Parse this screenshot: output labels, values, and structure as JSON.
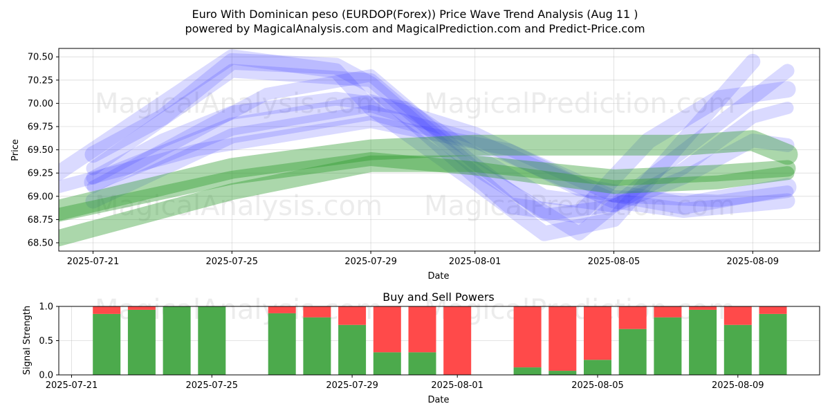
{
  "title": "Euro With Dominican peso (EURDOP(Forex)) Price Wave Trend Analysis (Aug 11 )",
  "subtitle": "powered by MagicalAnalysis.com and MagicalPrediction.com and Predict-Price.com",
  "watermarks": [
    "MagicalAnalysis.com",
    "MagicalPrediction.com"
  ],
  "chart_data": [
    {
      "type": "line",
      "title": "",
      "xlabel": "Date",
      "ylabel": "Price",
      "xlim": [
        "2025-07-20",
        "2025-08-11"
      ],
      "ylim": [
        68.41,
        70.6
      ],
      "grid": true,
      "x_tick_labels": [
        "2025-07-21",
        "2025-07-25",
        "2025-07-29",
        "2025-08-01",
        "2025-08-05",
        "2025-08-09"
      ],
      "y_tick_labels": [
        "68.50",
        "68.75",
        "69.00",
        "69.25",
        "69.50",
        "69.75",
        "70.00",
        "70.25",
        "70.50"
      ],
      "colors": {
        "blue_wave": "#3333ff",
        "green_wave": "#2e9c2e"
      },
      "series": [
        {
          "name": "blue-wave-1",
          "color": "blue",
          "opacity": 0.18,
          "x": [
            "2025-07-20",
            "2025-07-25",
            "2025-07-28",
            "2025-07-29",
            "2025-08-01",
            "2025-08-03",
            "2025-08-05",
            "2025-08-09"
          ],
          "values": [
            69.25,
            70.5,
            70.35,
            69.95,
            69.15,
            68.6,
            68.75,
            70.45
          ]
        },
        {
          "name": "blue-wave-2",
          "color": "blue",
          "opacity": 0.18,
          "x": [
            "2025-07-21",
            "2025-07-25",
            "2025-07-29",
            "2025-08-01",
            "2025-08-04",
            "2025-08-06",
            "2025-08-10"
          ],
          "values": [
            69.3,
            70.35,
            70.25,
            69.3,
            68.6,
            69.2,
            70.35
          ]
        },
        {
          "name": "blue-wave-3",
          "color": "blue",
          "opacity": 0.18,
          "x": [
            "2025-07-21",
            "2025-07-23",
            "2025-07-25",
            "2025-07-28",
            "2025-07-29",
            "2025-07-31",
            "2025-08-02",
            "2025-08-04",
            "2025-08-06",
            "2025-08-08",
            "2025-08-10"
          ],
          "values": [
            69.45,
            69.85,
            70.45,
            70.4,
            70.2,
            69.55,
            68.9,
            68.8,
            69.6,
            70.05,
            70.15
          ]
        },
        {
          "name": "blue-wave-4",
          "color": "blue",
          "opacity": 0.18,
          "x": [
            "2025-07-21",
            "2025-07-24",
            "2025-07-26",
            "2025-07-29",
            "2025-08-01",
            "2025-08-03",
            "2025-08-05",
            "2025-08-07",
            "2025-08-09",
            "2025-08-10"
          ],
          "values": [
            69.1,
            69.7,
            70.1,
            70.3,
            69.35,
            68.8,
            68.9,
            69.3,
            69.85,
            69.95
          ]
        },
        {
          "name": "blue-wave-5",
          "color": "blue",
          "opacity": 0.18,
          "x": [
            "2025-07-21",
            "2025-07-23",
            "2025-07-25",
            "2025-07-28",
            "2025-07-30",
            "2025-08-01",
            "2025-08-03",
            "2025-08-05",
            "2025-08-07",
            "2025-08-09",
            "2025-08-10"
          ],
          "values": [
            69.2,
            69.6,
            69.9,
            70.05,
            69.95,
            69.45,
            69.0,
            68.9,
            69.2,
            69.6,
            69.55
          ]
        },
        {
          "name": "blue-wave-6",
          "color": "blue",
          "opacity": 0.18,
          "x": [
            "2025-07-21",
            "2025-07-25",
            "2025-07-29",
            "2025-08-01",
            "2025-08-04",
            "2025-08-07",
            "2025-08-10"
          ],
          "values": [
            69.15,
            69.75,
            70.0,
            69.65,
            69.1,
            68.9,
            69.1
          ]
        },
        {
          "name": "blue-wave-7",
          "color": "blue",
          "opacity": 0.18,
          "x": [
            "2025-07-21",
            "2025-07-25",
            "2025-07-29",
            "2025-08-01",
            "2025-08-05",
            "2025-08-07",
            "2025-08-10"
          ],
          "values": [
            68.95,
            69.65,
            69.9,
            69.6,
            68.95,
            68.85,
            68.95
          ]
        },
        {
          "name": "blue-wave-8",
          "color": "blue",
          "opacity": 0.18,
          "x": [
            "2025-07-20",
            "2025-07-24",
            "2025-07-29",
            "2025-08-02",
            "2025-08-05",
            "2025-08-08",
            "2025-08-10"
          ],
          "values": [
            69.1,
            69.5,
            69.8,
            69.5,
            69.0,
            68.95,
            69.05
          ]
        },
        {
          "name": "green-wave-1",
          "color": "green",
          "opacity": 0.4,
          "x": [
            "2025-07-20",
            "2025-07-25",
            "2025-07-29",
            "2025-08-01",
            "2025-08-05",
            "2025-08-07",
            "2025-08-09",
            "2025-08-10"
          ],
          "values": [
            68.85,
            69.3,
            69.5,
            69.55,
            69.55,
            69.55,
            69.6,
            69.45
          ]
        },
        {
          "name": "green-wave-2",
          "color": "green",
          "opacity": 0.4,
          "x": [
            "2025-07-20",
            "2025-07-25",
            "2025-07-29",
            "2025-08-01",
            "2025-08-05",
            "2025-08-08",
            "2025-08-10"
          ],
          "values": [
            68.55,
            69.05,
            69.35,
            69.35,
            69.2,
            69.25,
            69.3
          ]
        },
        {
          "name": "green-wave-3",
          "color": "green",
          "opacity": 0.4,
          "x": [
            "2025-07-20",
            "2025-07-25",
            "2025-07-29",
            "2025-08-01",
            "2025-08-05",
            "2025-08-08",
            "2025-08-10"
          ],
          "values": [
            68.8,
            69.2,
            69.4,
            69.3,
            69.1,
            69.15,
            69.25
          ]
        }
      ]
    },
    {
      "type": "bar",
      "stacked": true,
      "title": "Buy and Sell Powers",
      "xlabel": "Date",
      "ylabel": "Signal Strength",
      "xlim": [
        "2025-07-20",
        "2025-08-11"
      ],
      "ylim": [
        0,
        1
      ],
      "grid": true,
      "x_tick_labels": [
        "2025-07-21",
        "2025-07-25",
        "2025-07-29",
        "2025-08-01",
        "2025-08-05",
        "2025-08-09"
      ],
      "y_tick_labels": [
        "0.0",
        "0.5",
        "1.0"
      ],
      "colors": {
        "buy": "#4caa4c",
        "sell": "#ff4a4a"
      },
      "categories": [
        "2025-07-22",
        "2025-07-23",
        "2025-07-24",
        "2025-07-25",
        "2025-07-27",
        "2025-07-28",
        "2025-07-29",
        "2025-07-30",
        "2025-07-31",
        "2025-08-01",
        "2025-08-03",
        "2025-08-04",
        "2025-08-05",
        "2025-08-06",
        "2025-08-07",
        "2025-08-08",
        "2025-08-09",
        "2025-08-10"
      ],
      "series": [
        {
          "name": "Buy",
          "values": [
            0.89,
            0.95,
            1.0,
            1.0,
            0.9,
            0.84,
            0.73,
            0.33,
            0.33,
            0.0,
            0.11,
            0.06,
            0.22,
            0.67,
            0.84,
            0.95,
            0.73,
            0.89
          ]
        },
        {
          "name": "Sell",
          "values": [
            0.11,
            0.05,
            0.0,
            0.0,
            0.1,
            0.16,
            0.27,
            0.67,
            0.67,
            1.0,
            0.89,
            0.94,
            0.78,
            0.33,
            0.16,
            0.05,
            0.27,
            0.11
          ]
        }
      ]
    }
  ]
}
